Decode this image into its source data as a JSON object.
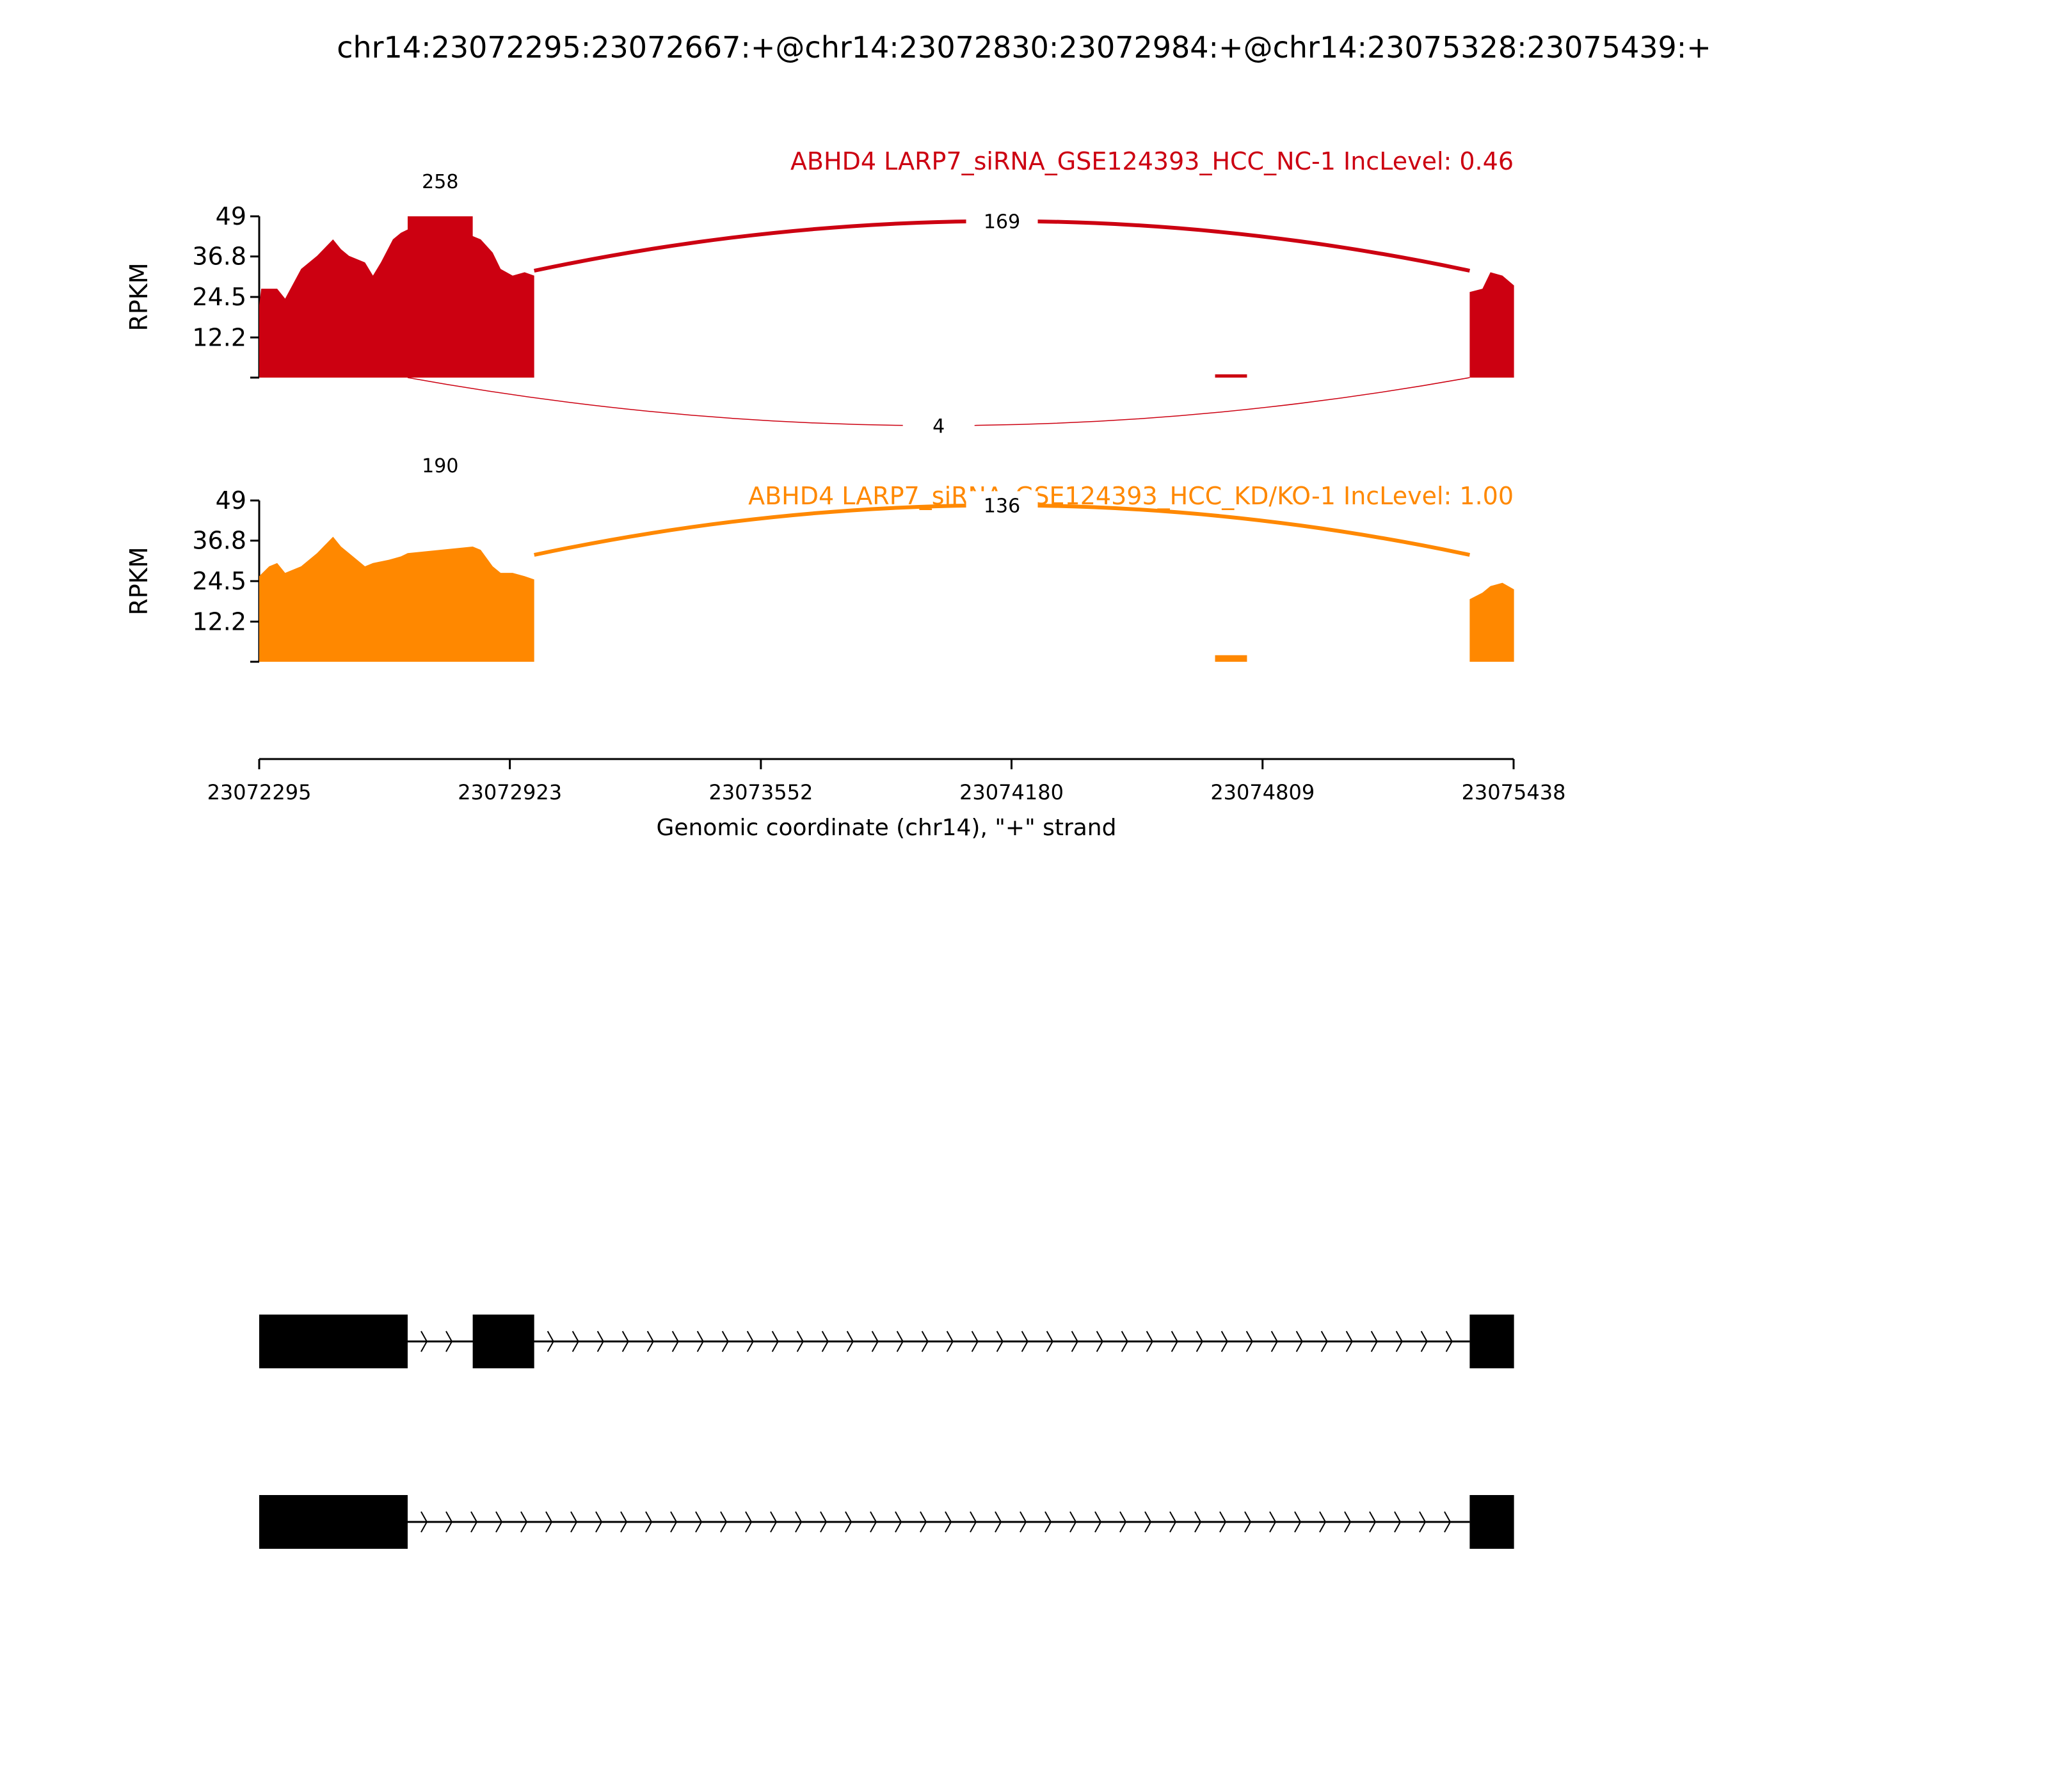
{
  "title": "chr14:23072295:23072667:+@chr14:23072830:23072984:+@chr14:23075328:23075439:+",
  "colors": {
    "nc": "#cc0011",
    "kd": "#ff8800",
    "axis": "#000000"
  },
  "chart_data": {
    "type": "area",
    "xlim": [
      23072295,
      23075438
    ],
    "xticks": [
      23072295,
      23072923,
      23073552,
      23074180,
      23074809,
      23075438
    ],
    "xlabel": "Genomic coordinate (chr14), \"+\" strand",
    "ylabel": "RPKM",
    "ylim": [
      0,
      49
    ],
    "yticks": [
      12.2,
      24.5,
      36.8,
      49
    ],
    "exons": [
      [
        23072295,
        23072667
      ],
      [
        23072830,
        23072984
      ],
      [
        23075328,
        23075439
      ]
    ],
    "tracks": [
      {
        "name": "ABHD4 LARP7_siRNA_GSE124393_HCC_NC-1 IncLevel: 0.46",
        "color": "#cc0011",
        "coverage": [
          [
            23072295,
            22
          ],
          [
            23072300,
            27
          ],
          [
            23072340,
            27
          ],
          [
            23072360,
            24
          ],
          [
            23072400,
            33
          ],
          [
            23072440,
            37
          ],
          [
            23072480,
            42
          ],
          [
            23072500,
            39
          ],
          [
            23072520,
            37
          ],
          [
            23072560,
            35
          ],
          [
            23072580,
            31
          ],
          [
            23072600,
            35
          ],
          [
            23072630,
            42
          ],
          [
            23072650,
            44
          ],
          [
            23072667,
            45
          ],
          [
            23072667,
            49
          ],
          [
            23072830,
            49
          ],
          [
            23072830,
            43
          ],
          [
            23072850,
            42
          ],
          [
            23072880,
            38
          ],
          [
            23072900,
            33
          ],
          [
            23072930,
            31
          ],
          [
            23072960,
            32
          ],
          [
            23072984,
            31
          ],
          [
            23074690,
            1
          ],
          [
            23074770,
            1
          ],
          [
            23075328,
            26
          ],
          [
            23075360,
            27
          ],
          [
            23075380,
            32
          ],
          [
            23075410,
            31
          ],
          [
            23075439,
            28
          ]
        ],
        "junctions": [
          {
            "from": 23072984,
            "to": 23075328,
            "reads": 169,
            "side": "above"
          },
          {
            "from": 23072667,
            "to": 23075328,
            "reads": 4,
            "side": "below"
          },
          {
            "from": 23072667,
            "to": 23072830,
            "reads": 258,
            "side": "above"
          }
        ]
      },
      {
        "name": "ABHD4 LARP7_siRNA_GSE124393_HCC_KD/KO-1 IncLevel: 1.00",
        "color": "#ff8800",
        "coverage": [
          [
            23072295,
            26
          ],
          [
            23072320,
            29
          ],
          [
            23072340,
            30
          ],
          [
            23072360,
            27
          ],
          [
            23072400,
            29
          ],
          [
            23072440,
            33
          ],
          [
            23072480,
            38
          ],
          [
            23072500,
            35
          ],
          [
            23072520,
            33
          ],
          [
            23072560,
            29
          ],
          [
            23072580,
            30
          ],
          [
            23072620,
            31
          ],
          [
            23072650,
            32
          ],
          [
            23072667,
            33
          ],
          [
            23072830,
            35
          ],
          [
            23072850,
            34
          ],
          [
            23072880,
            29
          ],
          [
            23072900,
            27
          ],
          [
            23072930,
            27
          ],
          [
            23072960,
            26
          ],
          [
            23072984,
            25
          ],
          [
            23074690,
            2
          ],
          [
            23074770,
            2
          ],
          [
            23075328,
            19
          ],
          [
            23075360,
            21
          ],
          [
            23075380,
            23
          ],
          [
            23075410,
            24
          ],
          [
            23075439,
            22
          ]
        ],
        "junctions": [
          {
            "from": 23072984,
            "to": 23075328,
            "reads": 136,
            "side": "above"
          },
          {
            "from": 23072667,
            "to": 23072830,
            "reads": 190,
            "side": "above"
          }
        ]
      }
    ],
    "transcripts": [
      {
        "exons": [
          [
            23072295,
            23072667
          ],
          [
            23072830,
            23072984
          ],
          [
            23075328,
            23075439
          ]
        ]
      },
      {
        "exons": [
          [
            23072295,
            23072667
          ],
          [
            23075328,
            23075439
          ]
        ]
      }
    ]
  }
}
